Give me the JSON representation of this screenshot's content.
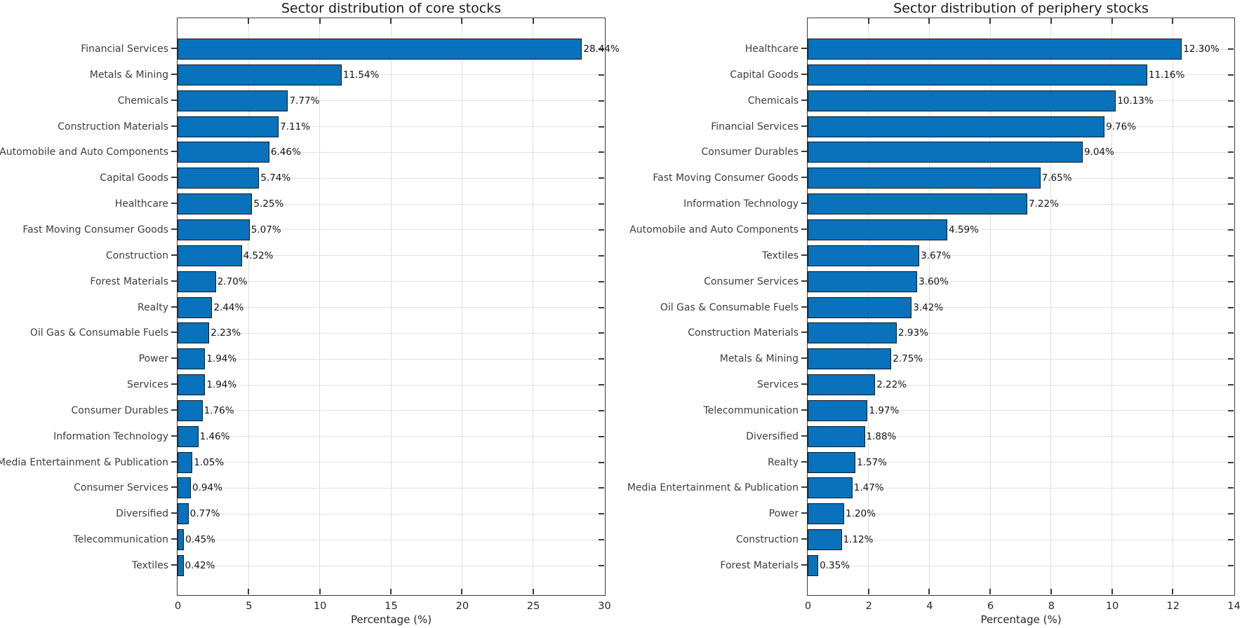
{
  "figure": {
    "background": "#ffffff",
    "bar_fill_color": "#0872bd",
    "bar_edge_color": "#16181a",
    "grid_color": "#dedede",
    "axis_color": "#3a3a3a",
    "text_color": "#262626"
  },
  "chart_data": [
    {
      "type": "bar",
      "orientation": "horizontal",
      "title": "Sector distribution of core stocks",
      "xlabel": "Percentage (%)",
      "xlim": [
        0,
        30
      ],
      "xticks": [
        0,
        5,
        10,
        15,
        20,
        25,
        30
      ],
      "xtick_labels": [
        "0",
        "5",
        "10",
        "15",
        "20",
        "25",
        "30"
      ],
      "grid": true,
      "legend_position": "none",
      "categories": [
        "Financial Services",
        "Metals & Mining",
        "Chemicals",
        "Construction Materials",
        "Automobile and Auto Components",
        "Capital Goods",
        "Healthcare",
        "Fast Moving Consumer Goods",
        "Construction",
        "Forest Materials",
        "Realty",
        "Oil Gas & Consumable Fuels",
        "Power",
        "Services",
        "Consumer Durables",
        "Information Technology",
        "Media Entertainment & Publication",
        "Consumer Services",
        "Diversified",
        "Telecommunication",
        "Textiles"
      ],
      "values": [
        28.44,
        11.54,
        7.77,
        7.11,
        6.46,
        5.74,
        5.25,
        5.07,
        4.52,
        2.7,
        2.44,
        2.23,
        1.94,
        1.94,
        1.76,
        1.46,
        1.05,
        0.94,
        0.77,
        0.45,
        0.42
      ],
      "value_labels": [
        "28.44%",
        "11.54%",
        "7.77%",
        "7.11%",
        "6.46%",
        "5.74%",
        "5.25%",
        "5.07%",
        "4.52%",
        "2.70%",
        "2.44%",
        "2.23%",
        "1.94%",
        "1.94%",
        "1.76%",
        "1.46%",
        "1.05%",
        "0.94%",
        "0.77%",
        "0.45%",
        "0.42%"
      ]
    },
    {
      "type": "bar",
      "orientation": "horizontal",
      "title": "Sector distribution of periphery stocks",
      "xlabel": "Percentage (%)",
      "xlim": [
        0,
        14
      ],
      "xticks": [
        0,
        2,
        4,
        6,
        8,
        10,
        12,
        14
      ],
      "xtick_labels": [
        "0",
        "2",
        "4",
        "6",
        "8",
        "10",
        "12",
        "14"
      ],
      "grid": true,
      "legend_position": "none",
      "categories": [
        "Healthcare",
        "Capital Goods",
        "Chemicals",
        "Financial Services",
        "Consumer Durables",
        "Fast Moving Consumer Goods",
        "Information Technology",
        "Automobile and Auto Components",
        "Textiles",
        "Consumer Services",
        "Oil Gas & Consumable Fuels",
        "Construction Materials",
        "Metals & Mining",
        "Services",
        "Telecommunication",
        "Diversified",
        "Realty",
        "Media Entertainment & Publication",
        "Power",
        "Construction",
        "Forest Materials"
      ],
      "values": [
        12.3,
        11.16,
        10.13,
        9.76,
        9.04,
        7.65,
        7.22,
        4.59,
        3.67,
        3.6,
        3.42,
        2.93,
        2.75,
        2.22,
        1.97,
        1.88,
        1.57,
        1.47,
        1.2,
        1.12,
        0.35
      ],
      "value_labels": [
        "12.30%",
        "11.16%",
        "10.13%",
        "9.76%",
        "9.04%",
        "7.65%",
        "7.22%",
        "4.59%",
        "3.67%",
        "3.60%",
        "3.42%",
        "2.93%",
        "2.75%",
        "2.22%",
        "1.97%",
        "1.88%",
        "1.57%",
        "1.47%",
        "1.20%",
        "1.12%",
        "0.35%"
      ]
    }
  ]
}
